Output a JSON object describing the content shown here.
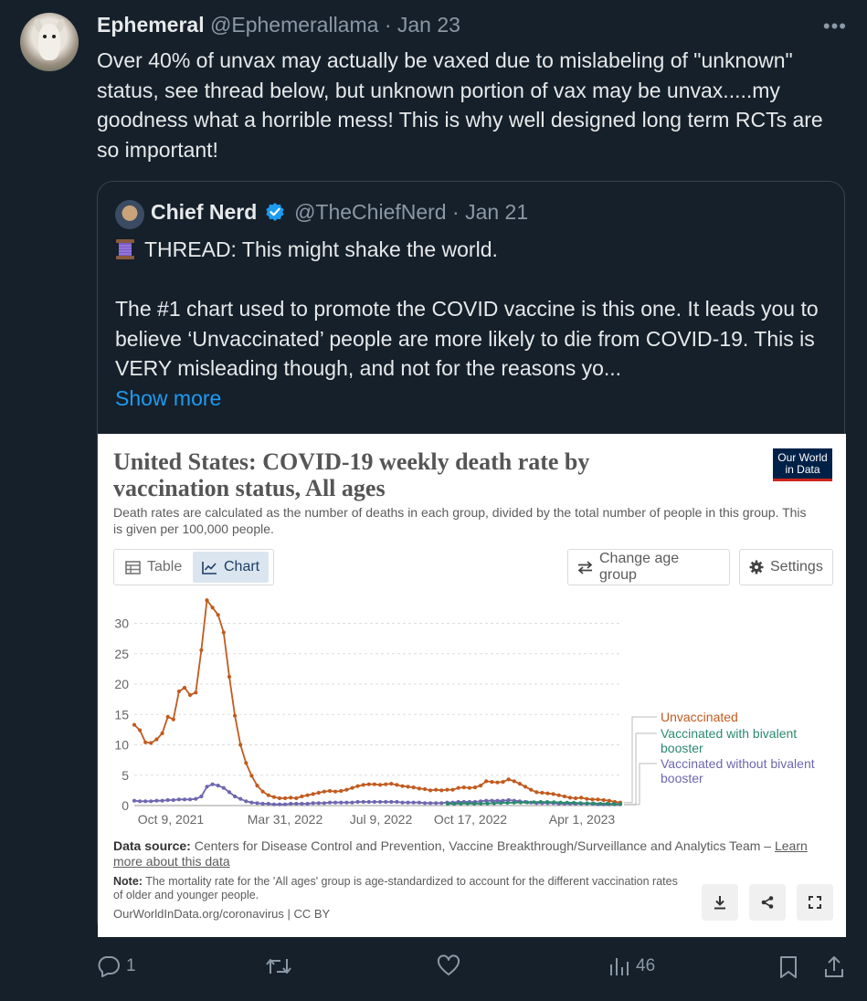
{
  "tweet": {
    "author_name": "Ephemeral",
    "author_handle": "@Ephemerallama",
    "dot": "·",
    "date": "Jan 23",
    "more_glyph": "•••",
    "text": "Over 40% of unvax may actually be vaxed due to mislabeling of \"unknown\" status, see thread below, but unknown portion of vax may be unvax.....my goodness what a horrible mess! This is why well designed long term RCTs are so important!"
  },
  "quote": {
    "author_name": "Chief Nerd",
    "author_handle": "@TheChiefNerd",
    "dot": "·",
    "date": "Jan 21",
    "line1": "THREAD: This might shake the world.",
    "body": "The #1 chart used to promote the COVID vaccine is this one. It leads you to believe ‘Unvaccinated’ people are more likely to die from COVID-19. This is VERY misleading though, and not for the reasons yo...",
    "show_more": "Show more"
  },
  "owid": {
    "title": "United States: COVID-19 weekly death rate by vaccination status, All ages",
    "subtitle": "Death rates are calculated as the number of deaths in each group, divided by the total number of people in this group. This is given per 100,000 people.",
    "logo_line1": "Our World",
    "logo_line2": "in Data",
    "tab_table": "Table",
    "tab_chart": "Chart",
    "change_age": "Change age group",
    "settings": "Settings",
    "data_source_label": "Data source:",
    "data_source_text": "Centers for Disease Control and Prevention, Vaccine Breakthrough/Surveillance and Analytics Team –",
    "learn_more": "Learn more about this data",
    "note_label": "Note:",
    "note_text": "The mortality rate for the 'All ages' group is age-standardized to account for the different vaccination rates of older and younger people.",
    "source_url": "OurWorldInData.org/coronavirus | CC BY"
  },
  "chart_data": {
    "type": "line",
    "title": "United States: COVID-19 weekly death rate by vaccination status, All ages",
    "ylim": [
      0,
      35
    ],
    "yticks": [
      0,
      5,
      10,
      15,
      20,
      25,
      30
    ],
    "xticks": [
      "Oct 9, 2021",
      "Mar 31, 2022",
      "Jul 9, 2022",
      "Oct 17, 2022",
      "Apr 1, 2023"
    ],
    "grid": true,
    "legend": "right",
    "series": [
      {
        "name": "Unvaccinated",
        "color": "#c15b1f",
        "values": [
          13.3,
          12.4,
          10.4,
          10.3,
          10.9,
          11.9,
          14.6,
          14.2,
          18.8,
          19.4,
          18.2,
          18.6,
          25.6,
          33.8,
          32.6,
          31.4,
          28.5,
          21.2,
          14.8,
          10.0,
          7.0,
          4.9,
          3.3,
          2.3,
          1.7,
          1.4,
          1.2,
          1.2,
          1.3,
          1.2,
          1.5,
          1.7,
          1.9,
          2.1,
          2.3,
          2.4,
          2.3,
          2.4,
          2.6,
          2.9,
          3.2,
          3.4,
          3.5,
          3.5,
          3.4,
          3.5,
          3.6,
          3.4,
          3.2,
          3.1,
          3.0,
          2.8,
          2.7,
          2.5,
          2.6,
          2.5,
          2.6,
          2.6,
          2.9,
          3.0,
          2.9,
          3.0,
          3.3,
          4.0,
          3.9,
          3.8,
          3.9,
          4.3,
          4.0,
          3.6,
          3.1,
          2.6,
          2.2,
          2.1,
          2.0,
          1.9,
          1.7,
          1.5,
          1.3,
          1.2,
          1.3,
          1.1,
          1.0,
          1.0,
          0.9,
          0.8,
          0.6,
          0.5
        ]
      },
      {
        "name": "Vaccinated with bivalent booster",
        "color": "#2b8a6e",
        "values": [
          0.3,
          0.28,
          0.32,
          0.35,
          0.3,
          0.33,
          0.36,
          0.38,
          0.42,
          0.45,
          0.48,
          0.5,
          0.52,
          0.55,
          0.6,
          0.58,
          0.55,
          0.5,
          0.48,
          0.45,
          0.4,
          0.38,
          0.35,
          0.3,
          0.28,
          0.25,
          0.22
        ]
      },
      {
        "name": "Vaccinated without bivalent booster",
        "color": "#6e66b0",
        "values": [
          0.8,
          0.7,
          0.7,
          0.7,
          0.8,
          0.8,
          0.9,
          0.9,
          1.0,
          1.0,
          1.0,
          1.1,
          1.5,
          3.1,
          3.5,
          3.3,
          2.9,
          2.2,
          1.5,
          1.1,
          0.7,
          0.5,
          0.4,
          0.3,
          0.3,
          0.2,
          0.2,
          0.2,
          0.3,
          0.3,
          0.3,
          0.3,
          0.4,
          0.4,
          0.4,
          0.5,
          0.5,
          0.5,
          0.5,
          0.5,
          0.6,
          0.6,
          0.6,
          0.6,
          0.6,
          0.6,
          0.6,
          0.6,
          0.5,
          0.5,
          0.5,
          0.5,
          0.4,
          0.4,
          0.4,
          0.4,
          0.5,
          0.5,
          0.6,
          0.6,
          0.6,
          0.6,
          0.7,
          0.8,
          0.8,
          0.8,
          0.8,
          0.9,
          0.8,
          0.7,
          0.6,
          0.5,
          0.4,
          0.4,
          0.4,
          0.4,
          0.3,
          0.3,
          0.3,
          0.3,
          0.3,
          0.3,
          0.3,
          0.2,
          0.2,
          0.2,
          0.2,
          0.2
        ]
      }
    ]
  },
  "actions": {
    "replies": "1",
    "views": "46"
  }
}
